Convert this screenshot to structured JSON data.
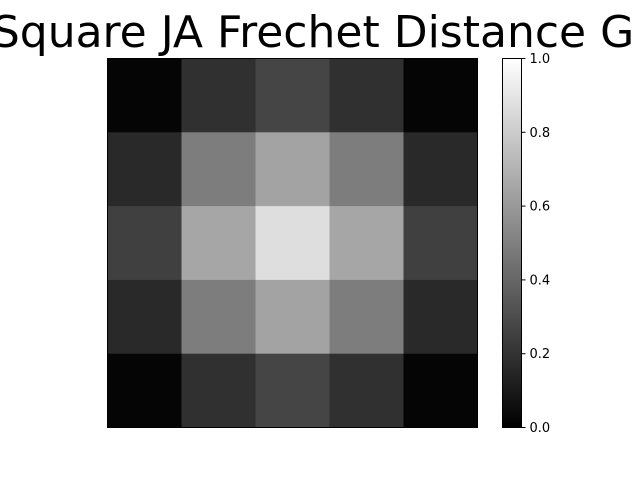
{
  "chart_data": {
    "type": "heatmap",
    "title": "Square JA Frechet Distance G",
    "colormap": "gray",
    "rows": 5,
    "cols": 5,
    "values": [
      [
        0.02,
        0.19,
        0.27,
        0.19,
        0.02
      ],
      [
        0.16,
        0.49,
        0.64,
        0.49,
        0.16
      ],
      [
        0.25,
        0.65,
        0.87,
        0.65,
        0.25
      ],
      [
        0.16,
        0.49,
        0.64,
        0.49,
        0.16
      ],
      [
        0.02,
        0.19,
        0.27,
        0.19,
        0.02
      ]
    ],
    "colorbar": {
      "range": [
        0.0,
        1.0
      ],
      "ticks": [
        0.0,
        0.2,
        0.4,
        0.6,
        0.8,
        1.0
      ],
      "tick_labels": [
        "0.0",
        "0.2",
        "0.4",
        "0.6",
        "0.8",
        "1.0"
      ]
    },
    "axes_visible": false
  }
}
